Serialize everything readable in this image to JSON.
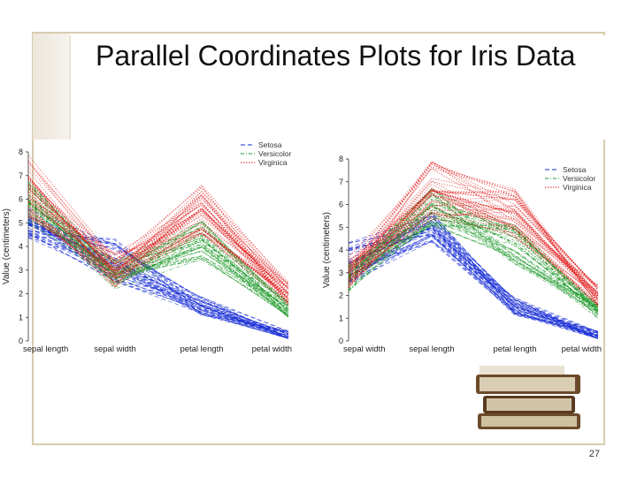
{
  "slide": {
    "title": "Parallel Coordinates Plots for Iris Data",
    "page_number": "27"
  },
  "colors": {
    "setosa": "#1a2fd6",
    "versicolor": "#1f9a2a",
    "virginica": "#e01818",
    "frame": "#d8ccb0"
  },
  "chart_data": [
    {
      "type": "line",
      "categories": [
        "sepal length",
        "sepal width",
        "petal length",
        "petal width"
      ],
      "ylabel": "Value (centimeters)",
      "ylim": [
        0,
        8
      ],
      "yticks": [
        0,
        1,
        2,
        3,
        4,
        5,
        6,
        7,
        8
      ],
      "legend_position": "top-right",
      "series": [
        {
          "name": "Setosa",
          "style": "dashed",
          "values": [
            5.0,
            3.4,
            1.5,
            0.2
          ],
          "min": [
            4.3,
            2.3,
            1.0,
            0.1
          ],
          "max": [
            5.8,
            4.4,
            1.9,
            0.6
          ]
        },
        {
          "name": "Versicolor",
          "style": "dash-dot",
          "values": [
            5.9,
            2.8,
            4.3,
            1.3
          ],
          "min": [
            4.9,
            2.0,
            3.0,
            1.0
          ],
          "max": [
            7.0,
            3.4,
            5.1,
            1.8
          ]
        },
        {
          "name": "Virginica",
          "style": "dotted",
          "values": [
            6.6,
            3.0,
            5.6,
            2.0
          ],
          "min": [
            4.9,
            2.2,
            4.5,
            1.4
          ],
          "max": [
            7.9,
            3.8,
            6.9,
            2.5
          ]
        }
      ]
    },
    {
      "type": "line",
      "categories": [
        "sepal width",
        "sepal length",
        "petal length",
        "petal width"
      ],
      "ylabel": "Value (centimeters)",
      "ylim": [
        0,
        8
      ],
      "yticks": [
        0,
        1,
        2,
        3,
        4,
        5,
        6,
        7,
        8
      ],
      "legend_position": "right",
      "series": [
        {
          "name": "Setosa",
          "style": "dashed",
          "values": [
            3.4,
            5.0,
            1.5,
            0.2
          ],
          "min": [
            2.3,
            4.3,
            1.0,
            0.1
          ],
          "max": [
            4.4,
            5.8,
            1.9,
            0.6
          ]
        },
        {
          "name": "Versicolor",
          "style": "dash-dot",
          "values": [
            2.8,
            5.9,
            4.3,
            1.3
          ],
          "min": [
            2.0,
            4.9,
            3.0,
            1.0
          ],
          "max": [
            3.4,
            7.0,
            5.1,
            1.8
          ]
        },
        {
          "name": "Virginica",
          "style": "dotted",
          "values": [
            3.0,
            6.6,
            5.6,
            2.0
          ],
          "min": [
            2.2,
            4.9,
            4.5,
            1.4
          ],
          "max": [
            3.8,
            7.9,
            6.9,
            2.5
          ]
        }
      ]
    }
  ]
}
